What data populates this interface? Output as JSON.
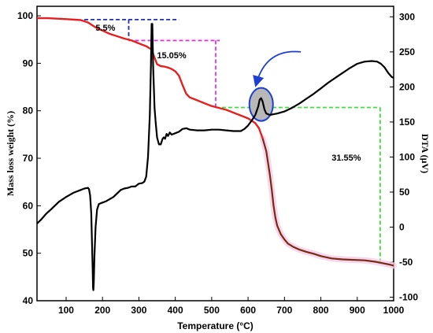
{
  "chart_data": {
    "type": "line",
    "xlabel": "Temperature (°C)",
    "ylabel_left": "Mass loss weight (%)",
    "ylabel_right": "DTA (μV)",
    "xlim": [
      20,
      1000
    ],
    "ylim_left": [
      40,
      102
    ],
    "ylim_right": [
      -105,
      315
    ],
    "x_ticks": [
      100,
      200,
      300,
      400,
      500,
      600,
      700,
      800,
      900,
      1000
    ],
    "y_left_ticks": [
      40,
      50,
      60,
      70,
      80,
      90,
      100
    ],
    "y_right_ticks": [
      -100,
      -50,
      0,
      50,
      100,
      150,
      200,
      250,
      300
    ],
    "series": [
      {
        "axis": "left",
        "color": "#e62020",
        "tail_color": "#7a2a12",
        "points": [
          [
            20,
            99.5
          ],
          [
            50,
            99.5
          ],
          [
            100,
            99.3
          ],
          [
            140,
            99.1
          ],
          [
            160,
            98.6
          ],
          [
            170,
            98.1
          ],
          [
            180,
            97.6
          ],
          [
            200,
            96.9
          ],
          [
            220,
            96.2
          ],
          [
            240,
            95.7
          ],
          [
            260,
            95.2
          ],
          [
            280,
            94.8
          ],
          [
            300,
            94.2
          ],
          [
            320,
            93.6
          ],
          [
            335,
            92.9
          ],
          [
            340,
            91.8
          ],
          [
            345,
            90.8
          ],
          [
            350,
            89.8
          ],
          [
            360,
            89.4
          ],
          [
            370,
            89.3
          ],
          [
            380,
            89.1
          ],
          [
            390,
            88.8
          ],
          [
            400,
            88.3
          ],
          [
            410,
            87.4
          ],
          [
            420,
            85.4
          ],
          [
            430,
            83.6
          ],
          [
            440,
            82.8
          ],
          [
            460,
            82.2
          ],
          [
            480,
            81.6
          ],
          [
            500,
            81.0
          ],
          [
            520,
            80.6
          ],
          [
            540,
            80.2
          ],
          [
            560,
            79.6
          ],
          [
            580,
            79.0
          ],
          [
            600,
            78.4
          ],
          [
            620,
            77.4
          ],
          [
            630,
            76.3
          ],
          [
            640,
            74.2
          ],
          [
            650,
            71.5
          ],
          [
            655,
            69.0
          ],
          [
            660,
            66.5
          ],
          [
            665,
            63.5
          ],
          [
            670,
            60.0
          ],
          [
            675,
            57.5
          ],
          [
            680,
            55.8
          ],
          [
            690,
            54.0
          ],
          [
            700,
            52.9
          ],
          [
            710,
            52.0
          ],
          [
            725,
            51.3
          ],
          [
            740,
            50.8
          ],
          [
            760,
            50.3
          ],
          [
            780,
            49.9
          ],
          [
            800,
            49.4
          ],
          [
            830,
            48.9
          ],
          [
            860,
            48.7
          ],
          [
            890,
            48.6
          ],
          [
            920,
            48.5
          ],
          [
            950,
            48.2
          ],
          [
            970,
            47.9
          ],
          [
            990,
            47.6
          ],
          [
            1000,
            47.4
          ]
        ]
      },
      {
        "axis": "right",
        "color": "#000000",
        "points": [
          [
            20,
            5
          ],
          [
            30,
            10
          ],
          [
            45,
            19
          ],
          [
            60,
            26
          ],
          [
            80,
            36
          ],
          [
            100,
            43
          ],
          [
            120,
            49
          ],
          [
            140,
            53
          ],
          [
            150,
            55
          ],
          [
            160,
            56
          ],
          [
            163,
            54
          ],
          [
            166,
            45
          ],
          [
            169,
            20
          ],
          [
            171,
            -20
          ],
          [
            173,
            -60
          ],
          [
            174,
            -87
          ],
          [
            175,
            -90
          ],
          [
            176,
            -80
          ],
          [
            178,
            -40
          ],
          [
            181,
            0
          ],
          [
            185,
            25
          ],
          [
            190,
            33
          ],
          [
            200,
            35
          ],
          [
            210,
            37
          ],
          [
            220,
            40
          ],
          [
            230,
            43
          ],
          [
            240,
            48
          ],
          [
            250,
            53
          ],
          [
            260,
            55
          ],
          [
            270,
            56
          ],
          [
            280,
            58
          ],
          [
            290,
            58
          ],
          [
            300,
            62
          ],
          [
            310,
            63
          ],
          [
            315,
            65
          ],
          [
            320,
            72
          ],
          [
            325,
            100
          ],
          [
            330,
            160
          ],
          [
            333,
            230
          ],
          [
            335,
            290
          ],
          [
            337,
            290
          ],
          [
            339,
            230
          ],
          [
            341,
            200
          ],
          [
            343,
            170
          ],
          [
            346,
            150
          ],
          [
            350,
            128
          ],
          [
            355,
            118
          ],
          [
            360,
            118
          ],
          [
            365,
            126
          ],
          [
            368,
            128
          ],
          [
            372,
            126
          ],
          [
            376,
            133
          ],
          [
            380,
            130
          ],
          [
            385,
            135
          ],
          [
            390,
            132
          ],
          [
            400,
            134
          ],
          [
            410,
            136
          ],
          [
            420,
            140
          ],
          [
            430,
            141
          ],
          [
            440,
            139
          ],
          [
            460,
            138
          ],
          [
            480,
            138
          ],
          [
            500,
            139
          ],
          [
            520,
            139
          ],
          [
            540,
            138
          ],
          [
            560,
            137
          ],
          [
            580,
            137
          ],
          [
            590,
            140
          ],
          [
            600,
            145
          ],
          [
            610,
            152
          ],
          [
            620,
            160
          ],
          [
            628,
            172
          ],
          [
            632,
            182
          ],
          [
            636,
            184
          ],
          [
            640,
            179
          ],
          [
            645,
            168
          ],
          [
            650,
            162
          ],
          [
            660,
            160
          ],
          [
            680,
            162
          ],
          [
            700,
            165
          ],
          [
            720,
            170
          ],
          [
            740,
            176
          ],
          [
            760,
            183
          ],
          [
            780,
            190
          ],
          [
            800,
            198
          ],
          [
            820,
            206
          ],
          [
            840,
            213
          ],
          [
            860,
            220
          ],
          [
            880,
            227
          ],
          [
            900,
            233
          ],
          [
            920,
            236
          ],
          [
            940,
            237
          ],
          [
            955,
            236
          ],
          [
            965,
            233
          ],
          [
            975,
            228
          ],
          [
            985,
            220
          ],
          [
            995,
            214
          ],
          [
            1000,
            213
          ]
        ]
      }
    ],
    "annotations": [
      {
        "text": "5.5%",
        "x": 208,
        "y": 97.5
      },
      {
        "text": "15.05%",
        "x": 390,
        "y": 91.7
      },
      {
        "text": "31.55%",
        "x": 870,
        "y": 70.2
      }
    ],
    "guide_colors": {
      "blue": "#1f2fb5",
      "magenta": "#e234e2",
      "green": "#3ddf3d",
      "blob_fill": "#b8b8b8",
      "blob_stroke": "#1e3fd3",
      "arrow": "#1e3fd3"
    }
  }
}
